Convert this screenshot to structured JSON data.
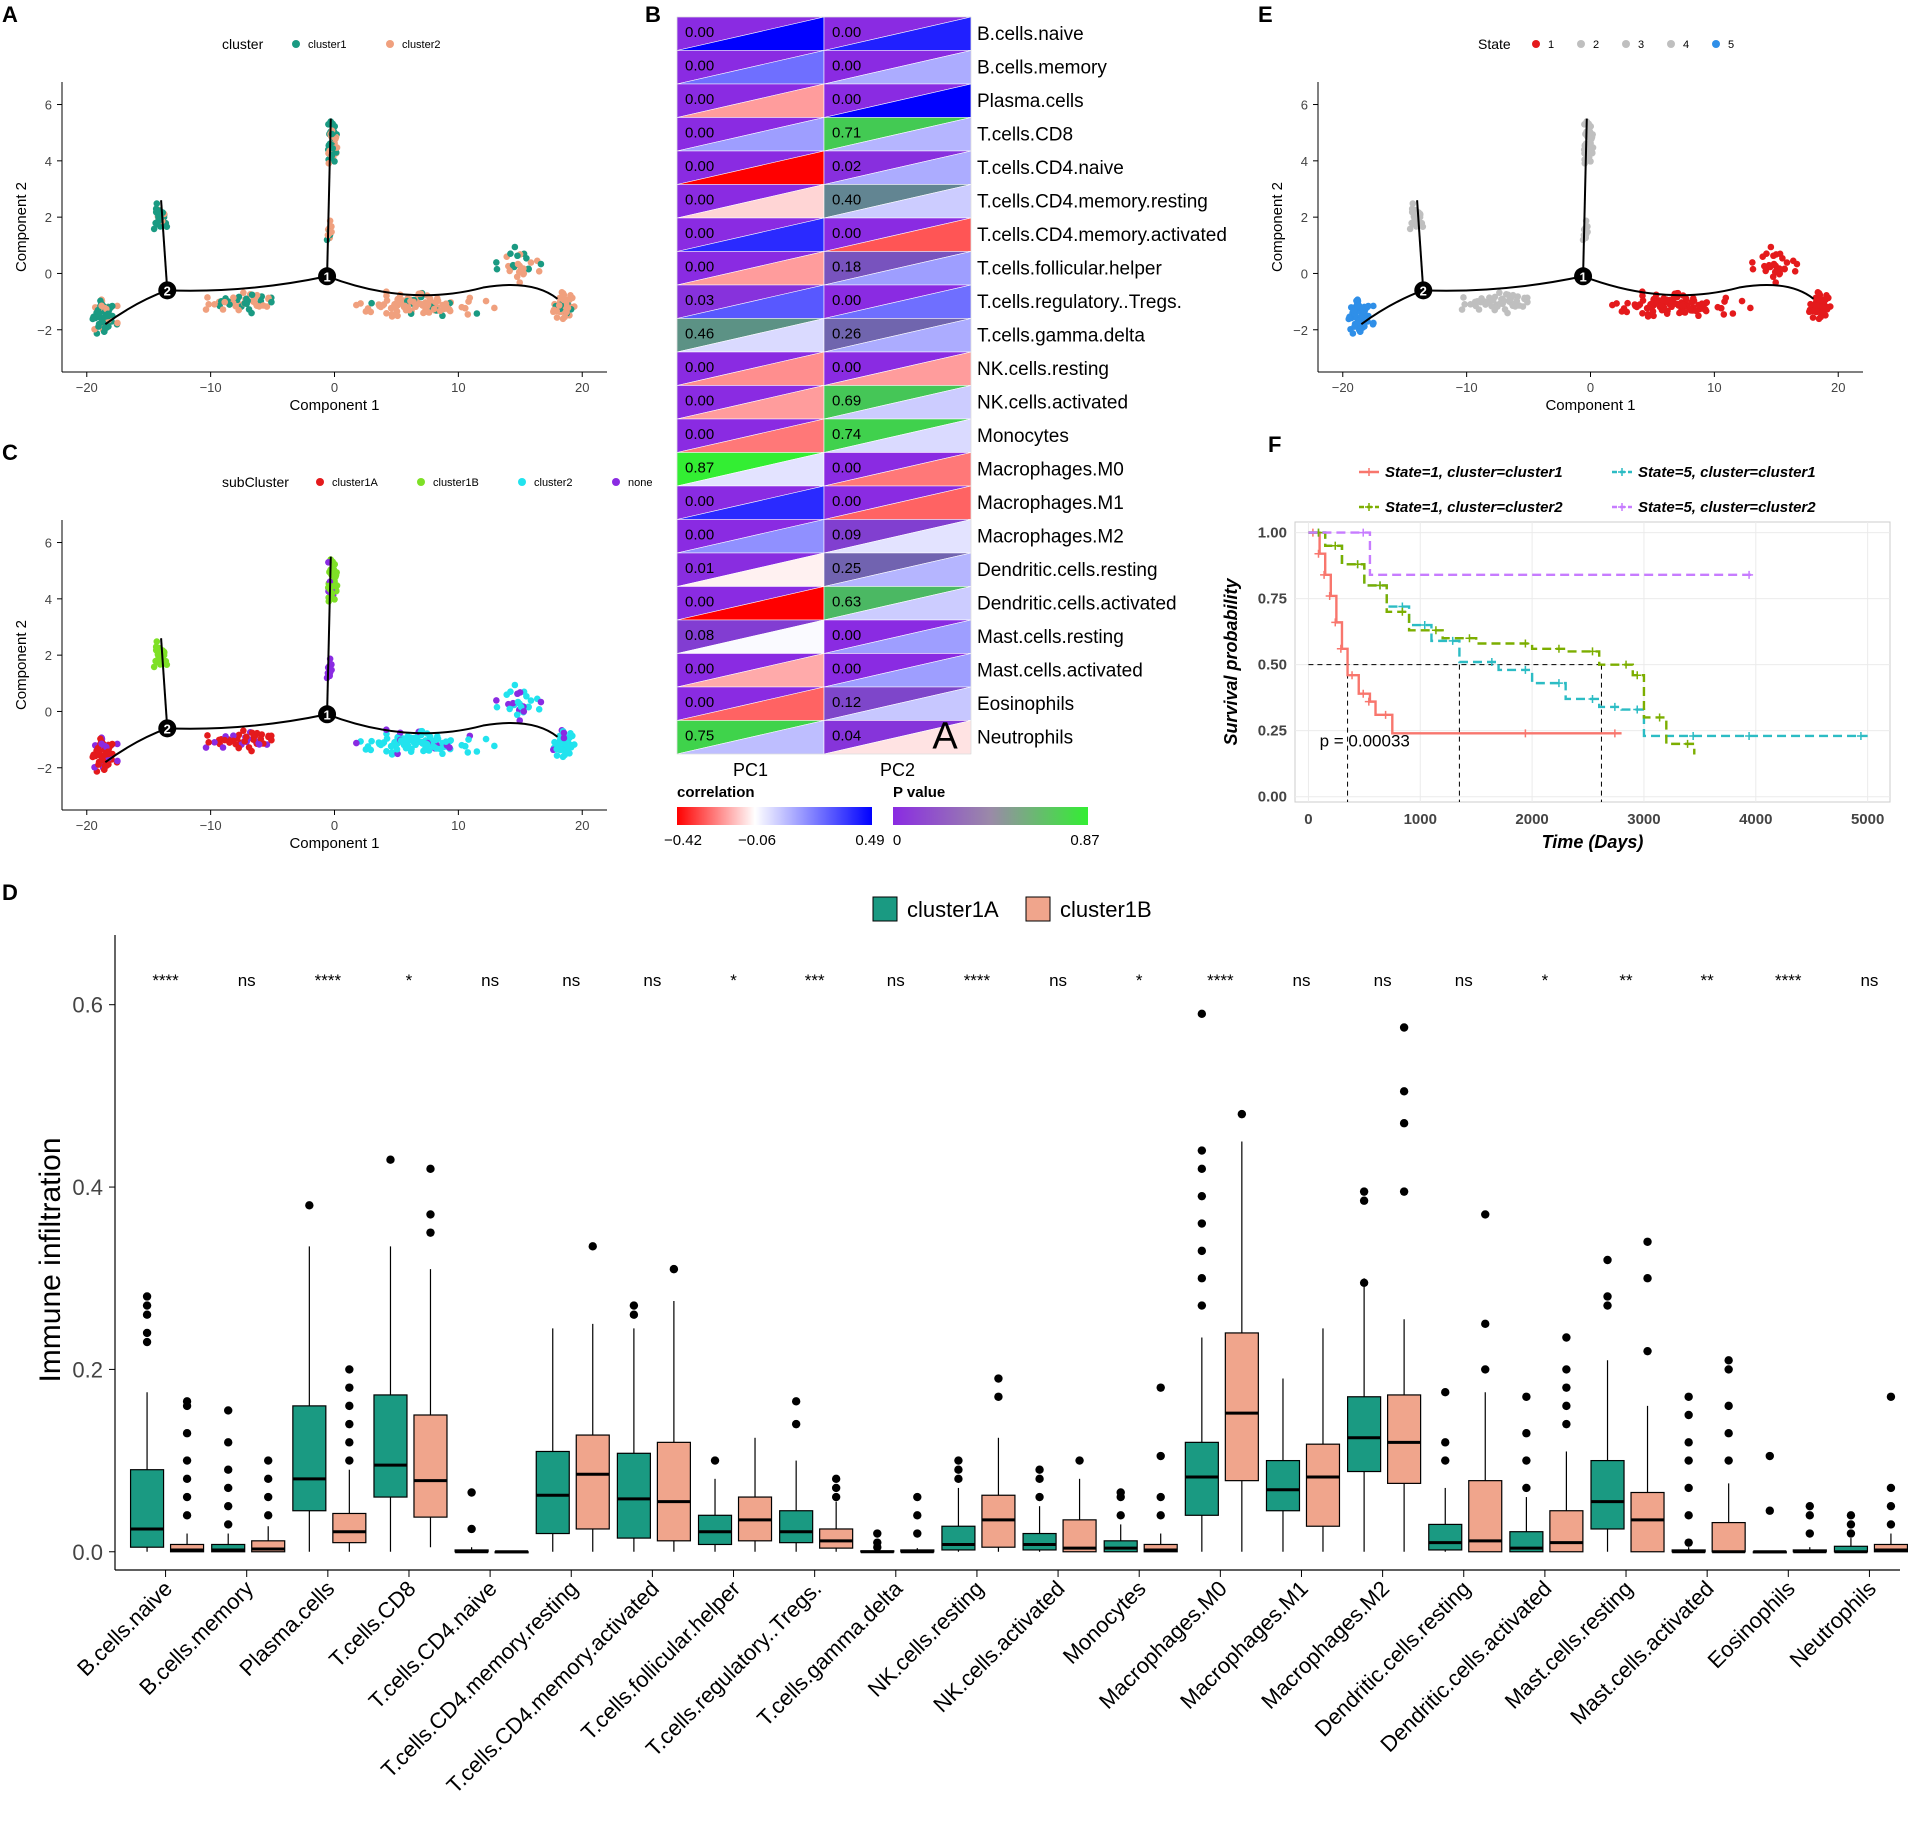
{
  "colors": {
    "cluster1": "#1a9a82",
    "cluster2": "#f0a07e",
    "cluster1A": "#e41a1c",
    "cluster1B": "#7ee026",
    "sub_cluster2": "#22e3ee",
    "none": "#8a2be2",
    "state1": "#e41a1c",
    "state_other": "#bfbfbf",
    "state5": "#2f8fe8",
    "km_s1c1": "#f8766d",
    "km_s5c1": "#2cbcc4",
    "km_s1c2": "#7cae00",
    "km_s5c2": "#c77cff",
    "corr_neg": "#ff0000",
    "corr_mid": "#ffffff",
    "corr_pos": "#0000ff",
    "p_low": "#8a2be2",
    "p_high": "#33ee33",
    "box_a_fill": "#1a9a82",
    "box_b_fill": "#f0a58c"
  },
  "chart_data": [
    {
      "panel": "A",
      "type": "scatter",
      "legend_title": "cluster",
      "legend": [
        "cluster1",
        "cluster2"
      ],
      "xlabel": "Component 1",
      "ylabel": "Component 2",
      "xticks": [
        -20,
        -10,
        0,
        10,
        20
      ],
      "yticks": [
        -2,
        0,
        2,
        4,
        6
      ],
      "xlim": [
        -22,
        22
      ],
      "ylim": [
        -3.5,
        6.8
      ],
      "branch_nodes": [
        {
          "label": "2",
          "x": -13.5,
          "y": -0.6
        },
        {
          "label": "1",
          "x": -0.6,
          "y": -0.1
        }
      ]
    },
    {
      "panel": "B",
      "type": "heatmap",
      "columns": [
        "PC1",
        "PC2"
      ],
      "rows": [
        "B.cells.naive",
        "B.cells.memory",
        "Plasma.cells",
        "T.cells.CD8",
        "T.cells.CD4.naive",
        "T.cells.CD4.memory.resting",
        "T.cells.CD4.memory.activated",
        "T.cells.follicular.helper",
        "T.cells.regulatory..Tregs.",
        "T.cells.gamma.delta",
        "NK.cells.resting",
        "NK.cells.activated",
        "Monocytes",
        "Macrophages.M0",
        "Macrophages.M1",
        "Macrophages.M2",
        "Dendritic.cells.resting",
        "Dendritic.cells.activated",
        "Mast.cells.resting",
        "Mast.cells.activated",
        "Eosinophils",
        "Neutrophils"
      ],
      "p_values": [
        [
          "0.00",
          "0.00"
        ],
        [
          "0.00",
          "0.00"
        ],
        [
          "0.00",
          "0.00"
        ],
        [
          "0.00",
          "0.71"
        ],
        [
          "0.00",
          "0.02"
        ],
        [
          "0.00",
          "0.40"
        ],
        [
          "0.00",
          "0.00"
        ],
        [
          "0.00",
          "0.18"
        ],
        [
          "0.03",
          "0.00"
        ],
        [
          "0.46",
          "0.26"
        ],
        [
          "0.00",
          "0.00"
        ],
        [
          "0.00",
          "0.69"
        ],
        [
          "0.00",
          "0.74"
        ],
        [
          "0.87",
          "0.00"
        ],
        [
          "0.00",
          "0.00"
        ],
        [
          "0.00",
          "0.09"
        ],
        [
          "0.01",
          "0.25"
        ],
        [
          "0.00",
          "0.63"
        ],
        [
          "0.08",
          "0.00"
        ],
        [
          "0.00",
          "0.00"
        ],
        [
          "0.00",
          "0.12"
        ],
        [
          "0.75",
          "0.04"
        ]
      ],
      "correlations": [
        [
          0.49,
          0.42
        ],
        [
          0.25,
          0.12
        ],
        [
          -0.2,
          0.49
        ],
        [
          0.15,
          0.1
        ],
        [
          -0.42,
          0.12
        ],
        [
          -0.12,
          0.05
        ],
        [
          0.4,
          -0.3
        ],
        [
          -0.2,
          0.15
        ],
        [
          0.3,
          0.25
        ],
        [
          0.02,
          0.12
        ],
        [
          -0.22,
          -0.2
        ],
        [
          -0.2,
          0.05
        ],
        [
          -0.25,
          0.02
        ],
        [
          0.0,
          -0.25
        ],
        [
          0.4,
          -0.28
        ],
        [
          0.18,
          0.0
        ],
        [
          -0.08,
          0.1
        ],
        [
          -0.42,
          0.05
        ],
        [
          -0.05,
          0.15
        ],
        [
          -0.18,
          0.15
        ],
        [
          -0.28,
          0.06
        ],
        [
          0.08,
          -0.1
        ]
      ],
      "corr_legend": {
        "title": "correlation",
        "ticks": [
          "-0.42",
          "-0.06",
          "0.49"
        ]
      },
      "p_legend": {
        "title": "P value",
        "ticks": [
          "0",
          "0.87"
        ]
      },
      "annotation": "A"
    },
    {
      "panel": "C",
      "type": "scatter",
      "legend_title": "subCluster",
      "legend": [
        "cluster1A",
        "cluster1B",
        "cluster2",
        "none"
      ],
      "xlabel": "Component 1",
      "ylabel": "Component 2",
      "xticks": [
        -20,
        -10,
        0,
        10,
        20
      ],
      "yticks": [
        -2,
        0,
        2,
        4,
        6
      ],
      "xlim": [
        -22,
        22
      ],
      "ylim": [
        -3.5,
        6.8
      ]
    },
    {
      "panel": "E",
      "type": "scatter",
      "legend_title": "State",
      "legend": [
        "1",
        "2",
        "3",
        "4",
        "5"
      ],
      "xlabel": "Component 1",
      "ylabel": "Component 2",
      "xticks": [
        -20,
        -10,
        0,
        10,
        20
      ],
      "yticks": [
        -2,
        0,
        2,
        4,
        6
      ],
      "xlim": [
        -22,
        22
      ],
      "ylim": [
        -3.5,
        6.8
      ]
    },
    {
      "panel": "F",
      "type": "line",
      "title": "",
      "xlabel": "Time (Days)",
      "ylabel": "Survival probability",
      "xticks": [
        0,
        1000,
        2000,
        3000,
        4000,
        5000
      ],
      "yticks": [
        "0.00",
        "0.25",
        "0.50",
        "0.75",
        "1.00"
      ],
      "xlim": [
        -120,
        5200
      ],
      "ylim": [
        -0.02,
        1.04
      ],
      "annotation": "p = 0.00033",
      "medians": [
        350,
        1350,
        2620
      ],
      "series": [
        {
          "name": "State=1, cluster=cluster1",
          "x": [
            0,
            100,
            150,
            200,
            250,
            300,
            350,
            450,
            550,
            600,
            750,
            2000,
            2800
          ],
          "y": [
            1.0,
            0.92,
            0.84,
            0.76,
            0.66,
            0.56,
            0.46,
            0.39,
            0.36,
            0.31,
            0.24,
            0.24,
            0.24
          ]
        },
        {
          "name": "State=5, cluster=cluster1",
          "x": [
            0,
            150,
            300,
            500,
            700,
            900,
            1100,
            1350,
            1700,
            2000,
            2300,
            2600,
            2800,
            3000,
            3500,
            4000,
            5000
          ],
          "y": [
            1.0,
            0.95,
            0.88,
            0.8,
            0.72,
            0.65,
            0.59,
            0.51,
            0.48,
            0.43,
            0.37,
            0.34,
            0.33,
            0.23,
            0.23,
            0.23,
            0.23
          ]
        },
        {
          "name": "State=1, cluster=cluster2",
          "x": [
            0,
            150,
            300,
            500,
            700,
            900,
            1200,
            1500,
            2000,
            2300,
            2600,
            2900,
            3000,
            3200,
            3450
          ],
          "y": [
            1.0,
            0.95,
            0.88,
            0.8,
            0.7,
            0.63,
            0.6,
            0.58,
            0.56,
            0.55,
            0.5,
            0.46,
            0.3,
            0.2,
            0.16
          ]
        },
        {
          "name": "State=5, cluster=cluster2",
          "x": [
            0,
            550,
            4000
          ],
          "y": [
            1.0,
            0.84,
            0.84
          ]
        }
      ]
    },
    {
      "panel": "D",
      "type": "box",
      "ylabel": "Immune infiltration",
      "yticks": [
        "0.0",
        "0.2",
        "0.4",
        "0.6"
      ],
      "ylim": [
        -0.02,
        0.66
      ],
      "legend": [
        "cluster1A",
        "cluster1B"
      ],
      "categories": [
        "B.cells.naive",
        "B.cells.memory",
        "Plasma.cells",
        "T.cells.CD8",
        "T.cells.CD4.naive",
        "T.cells.CD4.memory.resting",
        "T.cells.CD4.memory.activated",
        "T.cells.follicular.helper",
        "T.cells.regulatory..Tregs.",
        "T.cells.gamma.delta",
        "NK.cells.resting",
        "NK.cells.activated",
        "Monocytes",
        "Macrophages.M0",
        "Macrophages.M1",
        "Macrophages.M2",
        "Dendritic.cells.resting",
        "Dendritic.cells.activated",
        "Mast.cells.resting",
        "Mast.cells.activated",
        "Eosinophils",
        "Neutrophils"
      ],
      "significance": [
        "****",
        "ns",
        "****",
        "*",
        "ns",
        "ns",
        "ns",
        "*",
        "***",
        "ns",
        "****",
        "ns",
        "*",
        "****",
        "ns",
        "ns",
        "ns",
        "*",
        "**",
        "**",
        "****",
        "ns"
      ],
      "series": [
        {
          "name": "cluster1A",
          "boxes": [
            [
              0,
              0.005,
              0.025,
              0.09,
              0.175
            ],
            [
              0,
              0,
              0.002,
              0.008,
              0.02
            ],
            [
              0,
              0.045,
              0.08,
              0.16,
              0.335
            ],
            [
              0,
              0.06,
              0.095,
              0.172,
              0.335
            ],
            [
              0,
              0,
              0,
              0.002,
              0.005
            ],
            [
              0,
              0.02,
              0.062,
              0.11,
              0.245
            ],
            [
              0,
              0.015,
              0.058,
              0.108,
              0.245
            ],
            [
              0,
              0.008,
              0.022,
              0.04,
              0.08
            ],
            [
              0,
              0.01,
              0.022,
              0.045,
              0.1
            ],
            [
              0,
              0,
              0,
              0.001,
              0.003
            ],
            [
              0,
              0.002,
              0.008,
              0.028,
              0.07
            ],
            [
              0,
              0.002,
              0.008,
              0.02,
              0.05
            ],
            [
              0,
              0,
              0.004,
              0.012,
              0.03
            ],
            [
              0,
              0.04,
              0.082,
              0.12,
              0.235
            ],
            [
              0,
              0.045,
              0.068,
              0.1,
              0.19
            ],
            [
              0,
              0.088,
              0.125,
              0.17,
              0.3
            ],
            [
              0,
              0.002,
              0.01,
              0.03,
              0.07
            ],
            [
              0,
              0,
              0.004,
              0.022,
              0.06
            ],
            [
              0,
              0.025,
              0.055,
              0.1,
              0.21
            ],
            [
              0,
              0,
              0,
              0.002,
              0.005
            ],
            [
              0,
              0,
              0,
              0,
              0
            ],
            [
              0,
              0,
              0,
              0.006,
              0.015
            ]
          ],
          "outliers": [
            [
              0.23,
              0.24,
              0.26,
              0.27,
              0.28
            ],
            [
              0.03,
              0.05,
              0.07,
              0.09,
              0.12,
              0.155
            ],
            [
              0.38
            ],
            [
              0.43
            ],
            [
              0.025,
              0.065
            ],
            [],
            [
              0.26,
              0.27
            ],
            [
              0.1
            ],
            [
              0.14,
              0.165
            ],
            [
              0.005,
              0.01,
              0.02
            ],
            [
              0.08,
              0.09,
              0.1
            ],
            [
              0.06,
              0.08,
              0.09
            ],
            [
              0.04,
              0.06,
              0.065
            ],
            [
              0.27,
              0.3,
              0.33,
              0.36,
              0.39,
              0.42,
              0.44,
              0.59
            ],
            [],
            [
              0.295,
              0.385,
              0.395
            ],
            [
              0.1,
              0.12,
              0.175
            ],
            [
              0.07,
              0.1,
              0.13,
              0.17
            ],
            [
              0.27,
              0.28,
              0.32
            ],
            [
              0.01,
              0.04,
              0.07,
              0.1,
              0.12,
              0.15,
              0.17
            ],
            [
              0.045,
              0.105
            ],
            [
              0.02,
              0.03,
              0.04
            ]
          ]
        },
        {
          "name": "cluster1B",
          "boxes": [
            [
              0,
              0,
              0.002,
              0.008,
              0.02
            ],
            [
              0,
              0,
              0.003,
              0.012,
              0.028
            ],
            [
              0,
              0.01,
              0.022,
              0.042,
              0.09
            ],
            [
              0.005,
              0.038,
              0.078,
              0.15,
              0.31
            ],
            [
              0,
              0,
              0,
              0,
              0
            ],
            [
              0,
              0.025,
              0.085,
              0.128,
              0.25
            ],
            [
              0,
              0.012,
              0.055,
              0.12,
              0.275
            ],
            [
              0,
              0.012,
              0.035,
              0.06,
              0.125
            ],
            [
              0,
              0.004,
              0.012,
              0.025,
              0.055
            ],
            [
              0,
              0,
              0,
              0.002,
              0.004
            ],
            [
              0,
              0.005,
              0.035,
              0.062,
              0.125
            ],
            [
              0,
              0,
              0.004,
              0.035,
              0.08
            ],
            [
              0,
              0,
              0.002,
              0.008,
              0.02
            ],
            [
              0,
              0.078,
              0.152,
              0.24,
              0.45
            ],
            [
              0,
              0.028,
              0.082,
              0.118,
              0.245
            ],
            [
              0,
              0.075,
              0.12,
              0.172,
              0.255
            ],
            [
              0,
              0,
              0.012,
              0.078,
              0.175
            ],
            [
              0,
              0,
              0.01,
              0.045,
              0.11
            ],
            [
              0,
              0,
              0.035,
              0.065,
              0.16
            ],
            [
              0,
              0,
              0,
              0.032,
              0.075
            ],
            [
              0,
              0,
              0,
              0.002,
              0.005
            ],
            [
              0,
              0,
              0.002,
              0.008,
              0.02
            ]
          ],
          "outliers": [
            [
              0.04,
              0.06,
              0.08,
              0.1,
              0.13,
              0.16,
              0.165
            ],
            [
              0.04,
              0.06,
              0.08,
              0.1
            ],
            [
              0.1,
              0.12,
              0.14,
              0.16,
              0.18,
              0.2
            ],
            [
              0.35,
              0.37,
              0.42
            ],
            [],
            [
              0.335
            ],
            [
              0.31
            ],
            [],
            [
              0.06,
              0.07,
              0.08
            ],
            [
              0.02,
              0.04,
              0.06
            ],
            [
              0.17,
              0.19
            ],
            [
              0.1
            ],
            [
              0.04,
              0.06,
              0.105,
              0.18
            ],
            [
              0.48
            ],
            [],
            [
              0.395,
              0.47,
              0.505,
              0.575
            ],
            [
              0.2,
              0.25,
              0.37
            ],
            [
              0.14,
              0.16,
              0.18,
              0.2,
              0.235
            ],
            [
              0.22,
              0.3,
              0.34
            ],
            [
              0.1,
              0.13,
              0.16,
              0.2,
              0.21
            ],
            [
              0.02,
              0.04,
              0.05
            ],
            [
              0.03,
              0.05,
              0.07,
              0.17
            ]
          ]
        }
      ]
    }
  ]
}
